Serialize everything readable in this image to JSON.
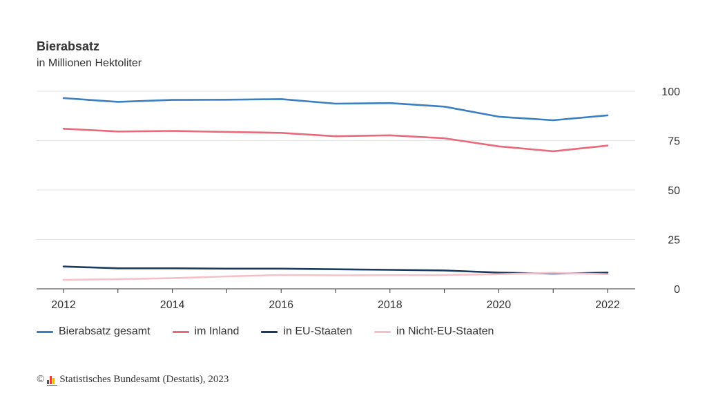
{
  "chart_data": {
    "type": "line",
    "title": "Bierabsatz",
    "subtitle": "in Millionen Hektoliter",
    "x": [
      2012,
      2013,
      2014,
      2015,
      2016,
      2017,
      2018,
      2019,
      2020,
      2021,
      2022
    ],
    "x_ticks": [
      "2012",
      "2014",
      "2016",
      "2018",
      "2020",
      "2022"
    ],
    "y_ticks": [
      "0",
      "25",
      "50",
      "75",
      "100"
    ],
    "ylim": [
      0,
      100
    ],
    "grid": true,
    "y_axis_side": "right",
    "legend_position": "bottom-left",
    "series": [
      {
        "name": "Bierabsatz gesamt",
        "color": "#3a7fbf",
        "values": [
          96.5,
          94.6,
          95.6,
          95.7,
          96.0,
          93.7,
          94.0,
          92.2,
          87.1,
          85.3,
          87.8
        ]
      },
      {
        "name": "im Inland",
        "color": "#e8697a",
        "values": [
          81.0,
          79.6,
          79.9,
          79.4,
          78.9,
          77.2,
          77.7,
          76.2,
          72.1,
          69.6,
          72.5
        ]
      },
      {
        "name": "in EU-Staaten",
        "color": "#1b3a5c",
        "values": [
          11.3,
          10.4,
          10.4,
          10.2,
          10.2,
          9.9,
          9.6,
          9.3,
          8.2,
          7.7,
          8.2
        ]
      },
      {
        "name": "in Nicht-EU-Staaten",
        "color": "#f7bfc8",
        "values": [
          4.5,
          4.9,
          5.4,
          6.3,
          7.0,
          6.8,
          6.9,
          7.0,
          7.4,
          8.1,
          7.4
        ]
      }
    ]
  },
  "source": {
    "copyright_symbol": "©",
    "text": "Statistisches Bundesamt (Destatis), 2023"
  }
}
